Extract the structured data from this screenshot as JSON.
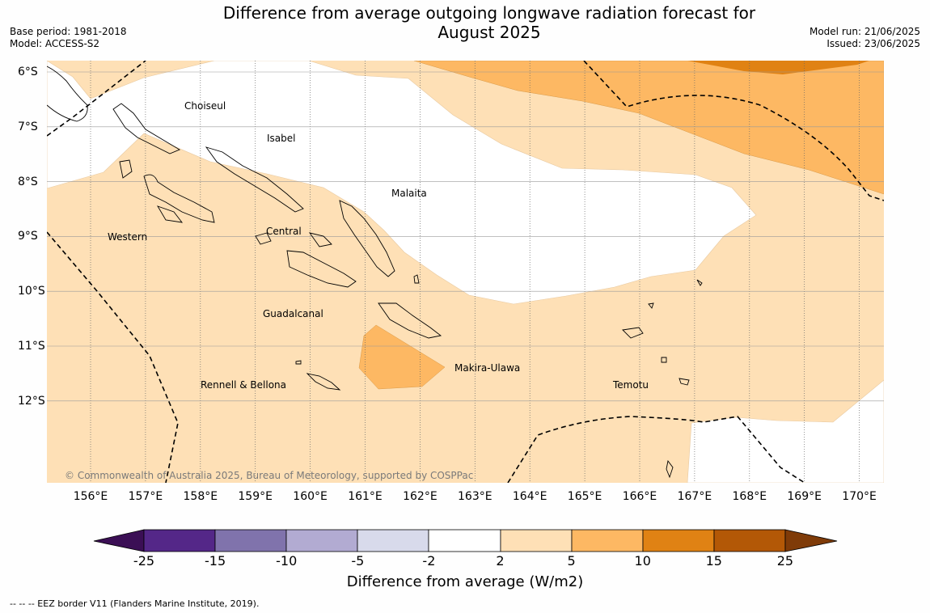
{
  "title_line1": "Difference from average outgoing longwave radiation forecast for",
  "title_line2": "August 2025",
  "meta_left": {
    "base_period": "Base period: 1981-2018",
    "model": "Model: ACCESS-S2"
  },
  "meta_right": {
    "model_run": "Model run: 21/06/2025",
    "issued": "Issued: 23/06/2025"
  },
  "longitudes": [
    "156°E",
    "157°E",
    "158°E",
    "159°E",
    "160°E",
    "161°E",
    "162°E",
    "163°E",
    "164°E",
    "165°E",
    "166°E",
    "167°E",
    "168°E",
    "169°E",
    "170°E"
  ],
  "latitudes": [
    "6°S",
    "7°S",
    "8°S",
    "9°S",
    "10°S",
    "11°S",
    "12°S"
  ],
  "regions": {
    "choiseul": "Choiseul",
    "isabel": "Isabel",
    "malaita": "Malaita",
    "western": "Western",
    "central": "Central",
    "guadalcanal": "Guadalcanal",
    "makira": "Makira-Ulawa",
    "rennell": "Rennell & Bellona",
    "temotu": "Temotu"
  },
  "copyright": "© Commonwealth of Australia 2025, Bureau of Meteorology, supported by COSPPac",
  "colorbar": {
    "ticks": [
      "-25",
      "-15",
      "-10",
      "-5",
      "-2",
      "2",
      "5",
      "10",
      "15",
      "25"
    ],
    "colors": [
      "#3b0f55",
      "#542788",
      "#8073ac",
      "#b2abd2",
      "#d8daeb",
      "#ffffff",
      "#fee0b6",
      "#fdb863",
      "#e08214",
      "#b35806",
      "#7f3b08"
    ],
    "label": "Difference from average (W/m2)"
  },
  "footnote": "--  --  -- EEZ border V11 (Flanders Marine Institute, 2019)."
}
